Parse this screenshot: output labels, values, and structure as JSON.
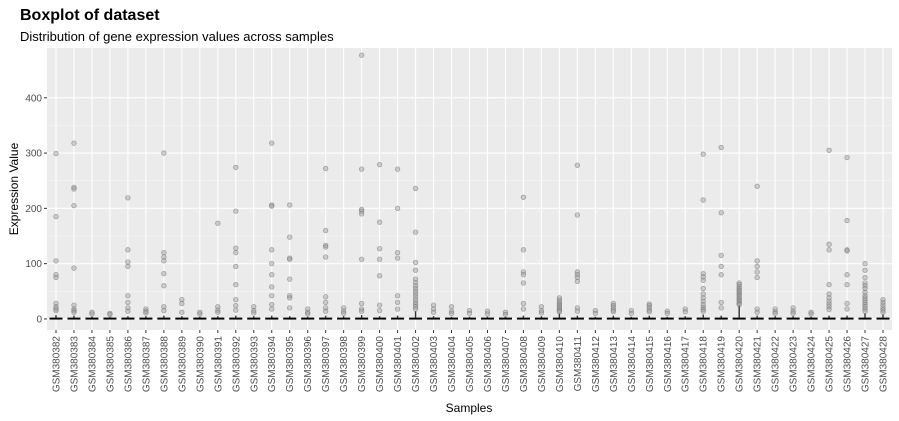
{
  "chart_data": {
    "type": "boxplot",
    "title": "Boxplot of dataset",
    "subtitle": "Distribution of gene expression values across samples",
    "xlabel": "Samples",
    "ylabel": "Expression Value",
    "ylim": [
      -20,
      490
    ],
    "yticks": [
      0,
      100,
      200,
      300,
      400
    ],
    "grid": true,
    "legend": "none",
    "colors": {
      "panel": "#ebebeb",
      "grid_major": "#ffffff",
      "grid_minor": "#f5f5f5",
      "box": "#333333",
      "outlier": "#999999"
    },
    "samples": [
      {
        "name": "GSM380382",
        "whisker_top": 7,
        "outliers": [
          299,
          185,
          105,
          80,
          75,
          28,
          22,
          18,
          15
        ]
      },
      {
        "name": "GSM380383",
        "whisker_top": 6,
        "outliers": [
          318,
          238,
          235,
          205,
          92,
          25,
          18,
          15,
          12
        ]
      },
      {
        "name": "GSM380384",
        "whisker_top": 4,
        "outliers": [
          12,
          9
        ]
      },
      {
        "name": "GSM380385",
        "whisker_top": 4,
        "outliers": [
          10,
          8
        ]
      },
      {
        "name": "GSM380386",
        "whisker_top": 5,
        "outliers": [
          219,
          125,
          103,
          95,
          42,
          30,
          20,
          14
        ]
      },
      {
        "name": "GSM380387",
        "whisker_top": 5,
        "outliers": [
          18,
          14,
          11
        ]
      },
      {
        "name": "GSM380388",
        "whisker_top": 6,
        "outliers": [
          300,
          120,
          112,
          105,
          82,
          60,
          22,
          15
        ]
      },
      {
        "name": "GSM380389",
        "whisker_top": 5,
        "outliers": [
          35,
          28,
          12
        ]
      },
      {
        "name": "GSM380390",
        "whisker_top": 4,
        "outliers": [
          12,
          9
        ]
      },
      {
        "name": "GSM380391",
        "whisker_top": 5,
        "outliers": [
          173,
          22,
          16,
          12
        ]
      },
      {
        "name": "GSM380392",
        "whisker_top": 6,
        "outliers": [
          274,
          195,
          128,
          120,
          95,
          62,
          35,
          24,
          16
        ]
      },
      {
        "name": "GSM380393",
        "whisker_top": 5,
        "outliers": [
          22,
          15,
          11
        ]
      },
      {
        "name": "GSM380394",
        "whisker_top": 6,
        "outliers": [
          318,
          206,
          204,
          125,
          100,
          80,
          58,
          42,
          26,
          18
        ]
      },
      {
        "name": "GSM380395",
        "whisker_top": 5,
        "outliers": [
          206,
          148,
          110,
          108,
          72,
          42,
          38,
          20
        ]
      },
      {
        "name": "GSM380396",
        "whisker_top": 4,
        "outliers": [
          18,
          12,
          9
        ]
      },
      {
        "name": "GSM380397",
        "whisker_top": 6,
        "outliers": [
          272,
          160,
          133,
          130,
          112,
          40,
          30,
          20,
          14
        ]
      },
      {
        "name": "GSM380398",
        "whisker_top": 5,
        "outliers": [
          20,
          14,
          10
        ]
      },
      {
        "name": "GSM380399",
        "whisker_top": 7,
        "outliers": [
          477,
          271,
          198,
          195,
          190,
          108,
          28,
          18,
          14
        ]
      },
      {
        "name": "GSM380400",
        "whisker_top": 5,
        "outliers": [
          279,
          175,
          127,
          108,
          78,
          25,
          15
        ]
      },
      {
        "name": "GSM380401",
        "whisker_top": 6,
        "outliers": [
          271,
          200,
          120,
          110,
          42,
          30,
          18
        ]
      },
      {
        "name": "GSM380402",
        "whisker_top": 14,
        "outliers": [
          236,
          157,
          102,
          88,
          72,
          66,
          60,
          55,
          50,
          45,
          40,
          35,
          30,
          26,
          22,
          18
        ]
      },
      {
        "name": "GSM380403",
        "whisker_top": 5,
        "outliers": [
          25,
          18,
          12
        ]
      },
      {
        "name": "GSM380404",
        "whisker_top": 4,
        "outliers": [
          22,
          14,
          10
        ]
      },
      {
        "name": "GSM380405",
        "whisker_top": 4,
        "outliers": [
          15,
          10
        ]
      },
      {
        "name": "GSM380406",
        "whisker_top": 4,
        "outliers": [
          14,
          9
        ]
      },
      {
        "name": "GSM380407",
        "whisker_top": 4,
        "outliers": [
          12,
          8
        ]
      },
      {
        "name": "GSM380408",
        "whisker_top": 6,
        "outliers": [
          220,
          125,
          85,
          80,
          65,
          28,
          18
        ]
      },
      {
        "name": "GSM380409",
        "whisker_top": 5,
        "outliers": [
          22,
          15,
          11
        ]
      },
      {
        "name": "GSM380410",
        "whisker_top": 10,
        "outliers": [
          38,
          34,
          30,
          27,
          24,
          21,
          18,
          15,
          13
        ]
      },
      {
        "name": "GSM380411",
        "whisker_top": 6,
        "outliers": [
          278,
          188,
          85,
          80,
          75,
          68,
          20,
          14
        ]
      },
      {
        "name": "GSM380412",
        "whisker_top": 4,
        "outliers": [
          15,
          10
        ]
      },
      {
        "name": "GSM380413",
        "whisker_top": 6,
        "outliers": [
          28,
          24,
          20,
          16,
          13
        ]
      },
      {
        "name": "GSM380414",
        "whisker_top": 4,
        "outliers": [
          15,
          10
        ]
      },
      {
        "name": "GSM380415",
        "whisker_top": 6,
        "outliers": [
          27,
          24,
          20,
          16,
          13
        ]
      },
      {
        "name": "GSM380416",
        "whisker_top": 4,
        "outliers": [
          14,
          10
        ]
      },
      {
        "name": "GSM380417",
        "whisker_top": 5,
        "outliers": [
          18,
          13
        ]
      },
      {
        "name": "GSM380418",
        "whisker_top": 8,
        "outliers": [
          298,
          215,
          82,
          76,
          70,
          55,
          45,
          38,
          32,
          26,
          21,
          17,
          14
        ]
      },
      {
        "name": "GSM380419",
        "whisker_top": 6,
        "outliers": [
          310,
          192,
          115,
          95,
          80,
          30,
          20
        ]
      },
      {
        "name": "GSM380420",
        "whisker_top": 24,
        "outliers": [
          65,
          62,
          58,
          55,
          52,
          49,
          46,
          43,
          40,
          37,
          34,
          31,
          28,
          26
        ]
      },
      {
        "name": "GSM380421",
        "whisker_top": 6,
        "outliers": [
          240,
          105,
          95,
          85,
          75,
          18,
          12
        ]
      },
      {
        "name": "GSM380422",
        "whisker_top": 5,
        "outliers": [
          18,
          13,
          10
        ]
      },
      {
        "name": "GSM380423",
        "whisker_top": 5,
        "outliers": [
          20,
          14,
          10
        ]
      },
      {
        "name": "GSM380424",
        "whisker_top": 4,
        "outliers": [
          12,
          9
        ]
      },
      {
        "name": "GSM380425",
        "whisker_top": 6,
        "outliers": [
          305,
          135,
          125,
          62,
          45,
          38,
          32,
          27,
          22,
          17
        ]
      },
      {
        "name": "GSM380426",
        "whisker_top": 6,
        "outliers": [
          292,
          178,
          125,
          123,
          80,
          62,
          28,
          18
        ]
      },
      {
        "name": "GSM380427",
        "whisker_top": 10,
        "outliers": [
          100,
          88,
          75,
          65,
          60,
          55,
          48,
          42,
          38,
          34,
          30,
          26,
          22,
          18,
          14
        ]
      },
      {
        "name": "GSM380428",
        "whisker_top": 8,
        "outliers": [
          35,
          30,
          25,
          20,
          16,
          12
        ]
      }
    ]
  }
}
